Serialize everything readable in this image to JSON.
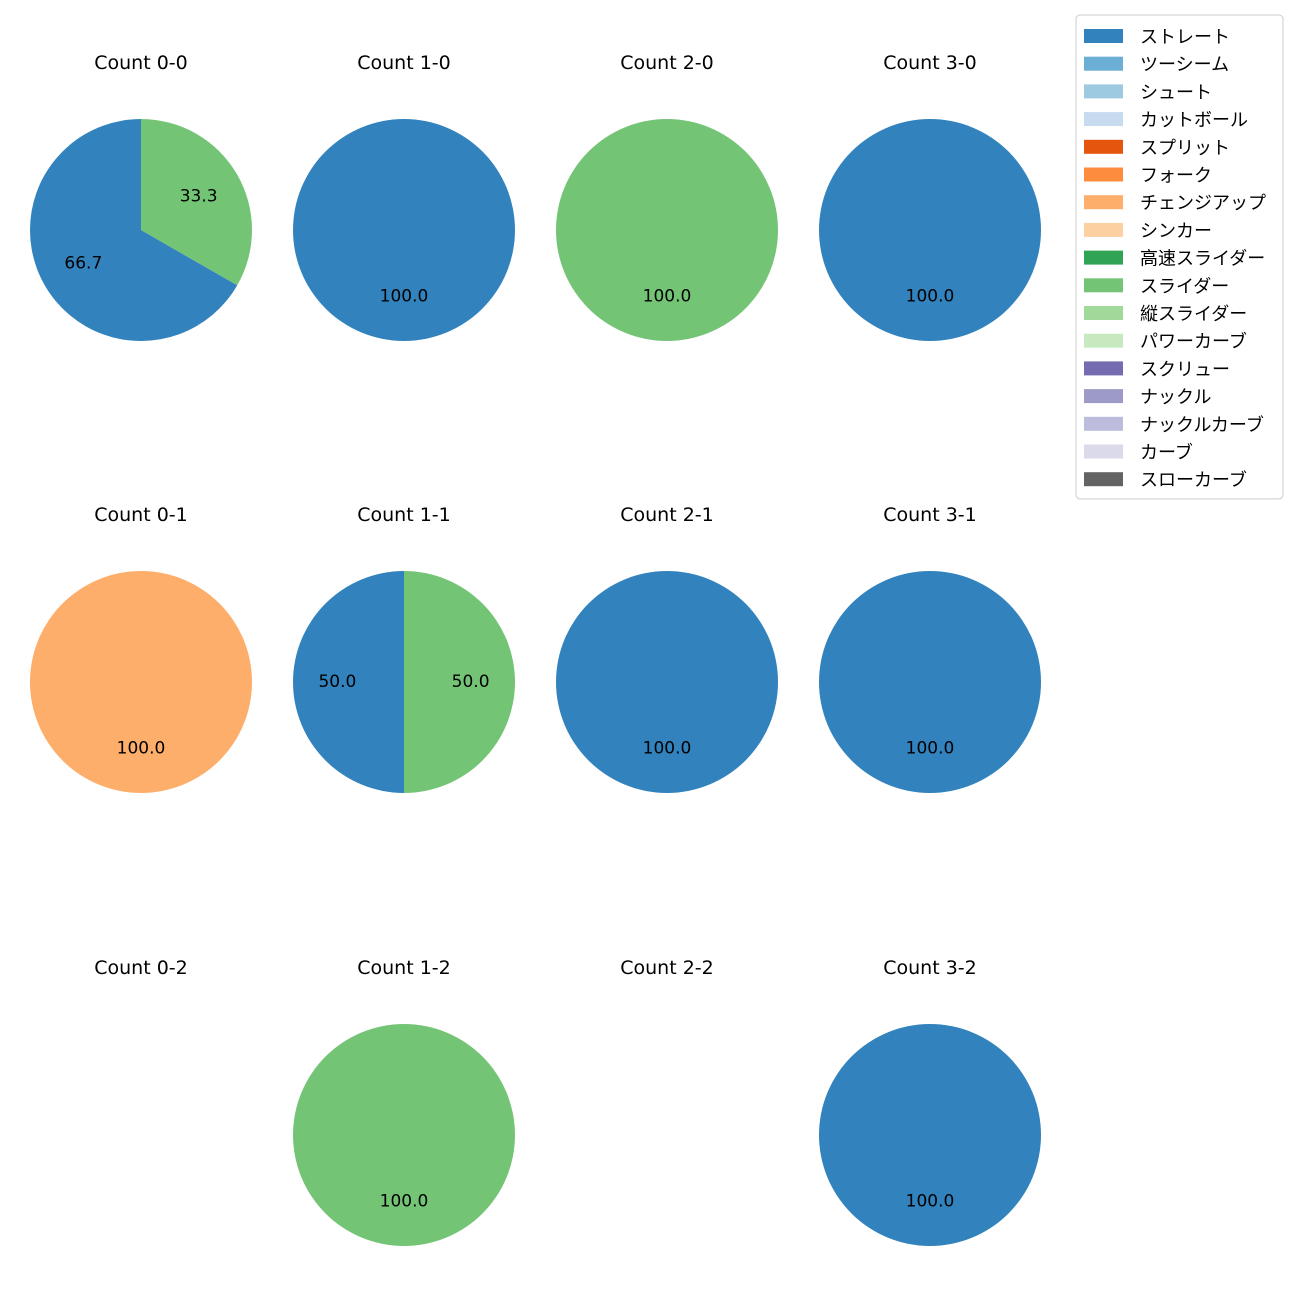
{
  "chart_data": {
    "type": "pie",
    "legend": [
      {
        "name": "ストレート",
        "color": "#3182bd"
      },
      {
        "name": "ツーシーム",
        "color": "#6baed6"
      },
      {
        "name": "シュート",
        "color": "#9ecae1"
      },
      {
        "name": "カットボール",
        "color": "#c6dbef"
      },
      {
        "name": "スプリット",
        "color": "#e6550d"
      },
      {
        "name": "フォーク",
        "color": "#fd8d3c"
      },
      {
        "name": "チェンジアップ",
        "color": "#fdae6b"
      },
      {
        "name": "シンカー",
        "color": "#fdd0a2"
      },
      {
        "name": "高速スライダー",
        "color": "#31a354"
      },
      {
        "name": "スライダー",
        "color": "#74c476"
      },
      {
        "name": "縦スライダー",
        "color": "#a1d99b"
      },
      {
        "name": "パワーカーブ",
        "color": "#c7e9c0"
      },
      {
        "name": "スクリュー",
        "color": "#756bb1"
      },
      {
        "name": "ナックル",
        "color": "#9e9ac8"
      },
      {
        "name": "ナックルカーブ",
        "color": "#bcbddc"
      },
      {
        "name": "カーブ",
        "color": "#dadaeb"
      },
      {
        "name": "スローカーブ",
        "color": "#636363"
      }
    ],
    "legend_position": "top-right",
    "subplots": [
      {
        "title": "Count 0-0",
        "slices": [
          {
            "name": "ストレート",
            "value": 66.7
          },
          {
            "name": "スライダー",
            "value": 33.3
          }
        ]
      },
      {
        "title": "Count 1-0",
        "slices": [
          {
            "name": "ストレート",
            "value": 100.0
          }
        ]
      },
      {
        "title": "Count 2-0",
        "slices": [
          {
            "name": "スライダー",
            "value": 100.0
          }
        ]
      },
      {
        "title": "Count 3-0",
        "slices": [
          {
            "name": "ストレート",
            "value": 100.0
          }
        ]
      },
      {
        "title": "Count 0-1",
        "slices": [
          {
            "name": "チェンジアップ",
            "value": 100.0
          }
        ]
      },
      {
        "title": "Count 1-1",
        "slices": [
          {
            "name": "ストレート",
            "value": 50.0
          },
          {
            "name": "スライダー",
            "value": 50.0
          }
        ]
      },
      {
        "title": "Count 2-1",
        "slices": [
          {
            "name": "ストレート",
            "value": 100.0
          }
        ]
      },
      {
        "title": "Count 3-1",
        "slices": [
          {
            "name": "ストレート",
            "value": 100.0
          }
        ]
      },
      {
        "title": "Count 0-2",
        "slices": []
      },
      {
        "title": "Count 1-2",
        "slices": [
          {
            "name": "スライダー",
            "value": 100.0
          }
        ]
      },
      {
        "title": "Count 2-2",
        "slices": []
      },
      {
        "title": "Count 3-2",
        "slices": [
          {
            "name": "ストレート",
            "value": 100.0
          }
        ]
      }
    ]
  }
}
